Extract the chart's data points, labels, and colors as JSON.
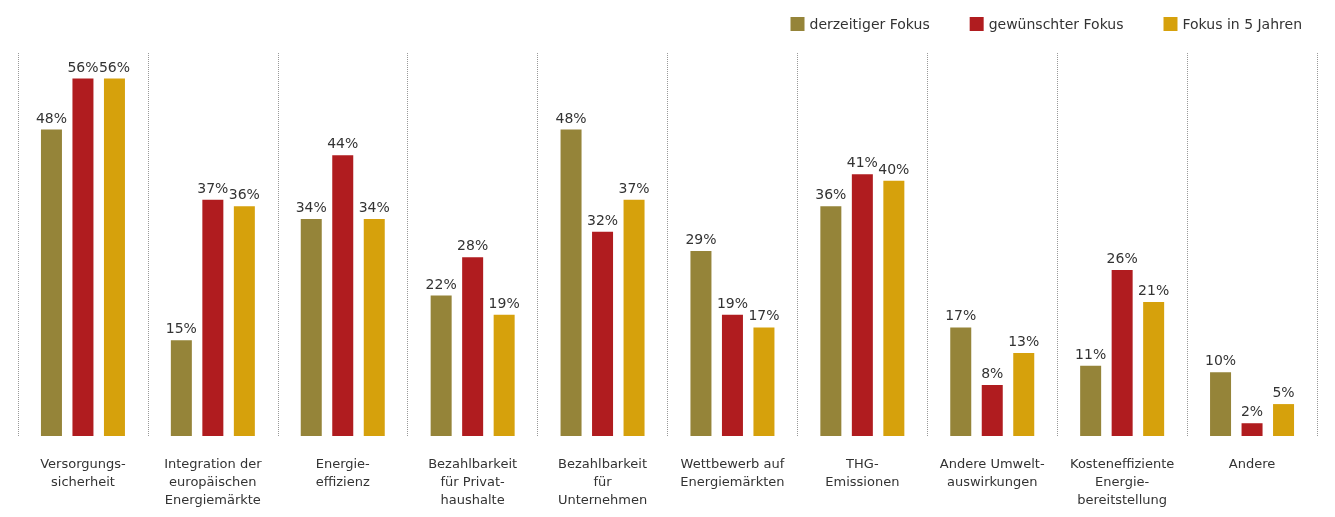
{
  "chart_data": {
    "type": "bar",
    "categories": [
      "Versorgungs-\nsicherheit",
      "Integration der\neuropäischen\nEnergiemärkte",
      "Energie-\neffizienz",
      "Bezahlbarkeit\nfür Privat-\nhaushalte",
      "Bezahlbarkeit\nfür\nUnternehmen",
      "Wettbewerb auf\nEnergiemärkten",
      "THG-\nEmissionen",
      "Andere Umwelt-\nauswirkungen",
      "Kosteneffiziente\nEnergie-\nbereitstellung",
      "Andere"
    ],
    "series": [
      {
        "name": "derzeitiger Fokus",
        "color": "#958439",
        "values": [
          48,
          15,
          34,
          22,
          48,
          29,
          36,
          17,
          11,
          10
        ],
        "value_labels": [
          "48%",
          "15%",
          "34%",
          "22%",
          "48%",
          "29%",
          "36%",
          "17%",
          "11%",
          "10%"
        ]
      },
      {
        "name": "gewünschter Fokus",
        "color": "#b01c1f",
        "values": [
          56,
          37,
          44,
          28,
          32,
          19,
          41,
          8,
          26,
          2
        ],
        "value_labels": [
          "56%",
          "37%",
          "44%",
          "28%",
          "32%",
          "19%",
          "41%",
          "8%",
          "26%",
          "2%"
        ]
      },
      {
        "name": "Fokus in 5 Jahren",
        "color": "#d6a10c",
        "values": [
          56,
          36,
          34,
          19,
          37,
          17,
          40,
          13,
          21,
          5
        ],
        "value_labels": [
          "56%",
          "36%",
          "34%",
          "19%",
          "37%",
          "17%",
          "40%",
          "13%",
          "21%",
          "5%"
        ]
      }
    ],
    "grid": "x",
    "legend": "top right"
  }
}
